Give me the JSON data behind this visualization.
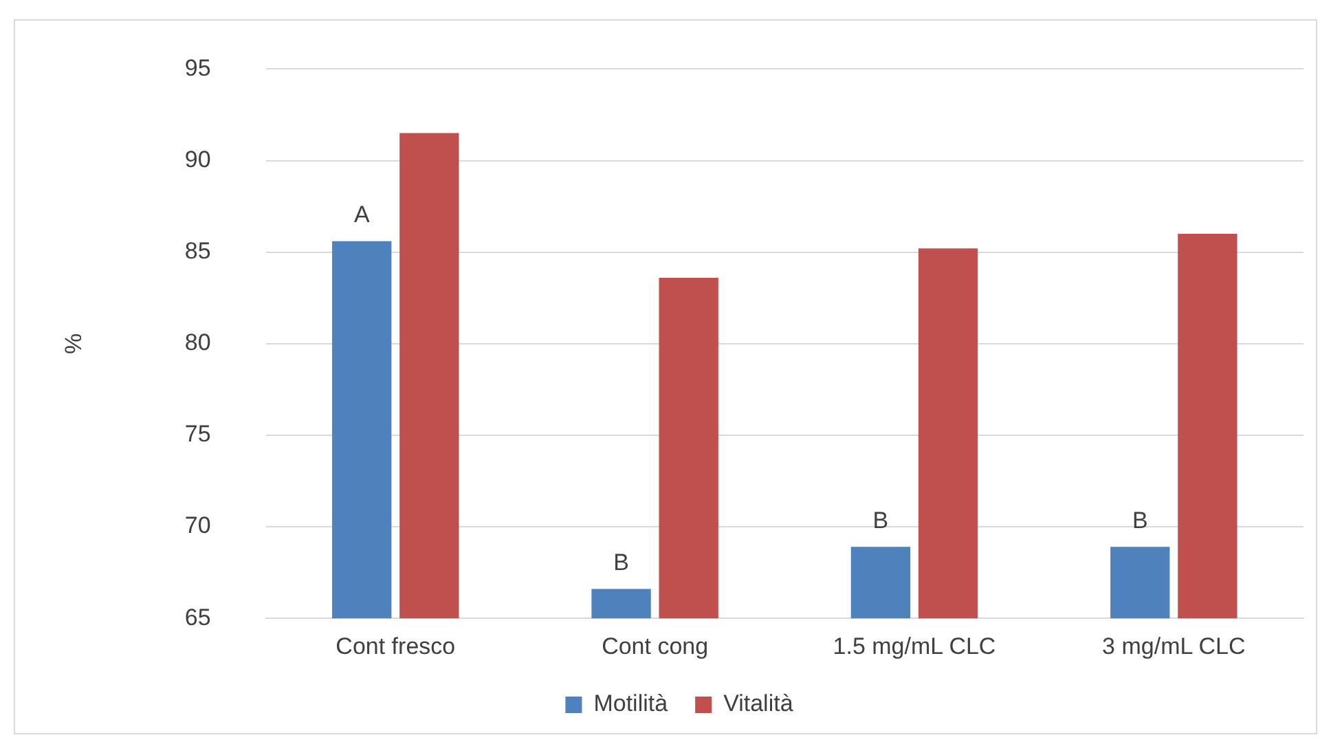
{
  "chart_data": {
    "type": "bar",
    "ylabel": "%",
    "categories": [
      "Cont fresco",
      "Cont cong",
      "1.5 mg/mL CLC",
      "3 mg/mL CLC"
    ],
    "series": [
      {
        "name": "Motilità",
        "color": "#4f81bd",
        "values": [
          85.6,
          66.6,
          68.9,
          68.9
        ]
      },
      {
        "name": "Vitalità",
        "color": "#c0504d",
        "values": [
          91.5,
          83.6,
          85.2,
          86.0
        ]
      }
    ],
    "ylim": [
      65,
      95
    ],
    "yticks": [
      65,
      70,
      75,
      80,
      85,
      90,
      95
    ],
    "grid": "y",
    "legend": "bottom",
    "annotations": [
      {
        "text": "A",
        "x": "Cont fresco",
        "y": 85.6
      },
      {
        "text": "B",
        "x": "Cont cong",
        "y": 66.6
      },
      {
        "text": "B",
        "x": "1.5 mg/mL CLC",
        "y": 68.9
      },
      {
        "text": "B",
        "x": "3 mg/mL CLC",
        "y": 68.9
      }
    ]
  }
}
